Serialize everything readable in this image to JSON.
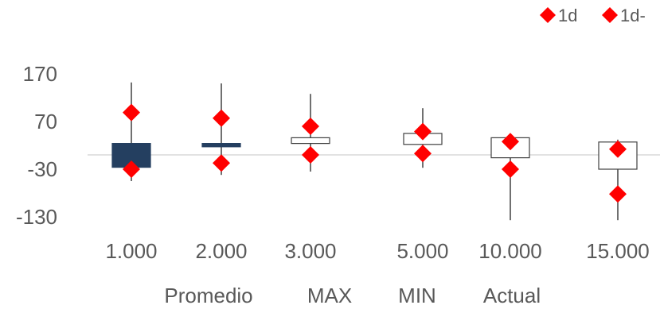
{
  "chart_data": {
    "type": "box",
    "categories": [
      "1.000",
      "2.000",
      "3.000",
      "5.000",
      "10.000",
      "15.000"
    ],
    "ylim": [
      -150,
      200
    ],
    "y_ticks": [
      "170",
      "70",
      "-30",
      "-130"
    ],
    "y_tick_values": [
      170,
      70,
      -30,
      -130
    ],
    "bottom_labels": [
      "Promedio",
      "MAX",
      "MIN",
      "Actual"
    ],
    "boxes": [
      {
        "min": -55,
        "q1": -26,
        "q3": 24,
        "max": 152,
        "fill": "#243f60"
      },
      {
        "min": -42,
        "q1": 17,
        "q3": 24,
        "max": 150,
        "fill": "#243f60"
      },
      {
        "min": -35,
        "q1": 24,
        "q3": 36,
        "max": 128,
        "fill": "#ffffff"
      },
      {
        "min": -27,
        "q1": 22,
        "q3": 45,
        "max": 98,
        "fill": "#ffffff"
      },
      {
        "min": -137,
        "q1": -6,
        "q3": 36,
        "max": 36,
        "fill": "#ffffff"
      },
      {
        "min": -137,
        "q1": -30,
        "q3": 27,
        "max": 32,
        "fill": "#ffffff"
      }
    ],
    "series": [
      {
        "name": "1d",
        "marker": "diamond",
        "color": "#ff0000",
        "values": [
          89,
          77,
          60,
          49,
          28,
          12
        ]
      },
      {
        "name": "1d-",
        "marker": "diamond",
        "color": "#ff0000",
        "values": [
          -30,
          -17,
          0,
          3,
          -30,
          -82
        ]
      }
    ],
    "baseline": 0,
    "legend": "top-right"
  }
}
